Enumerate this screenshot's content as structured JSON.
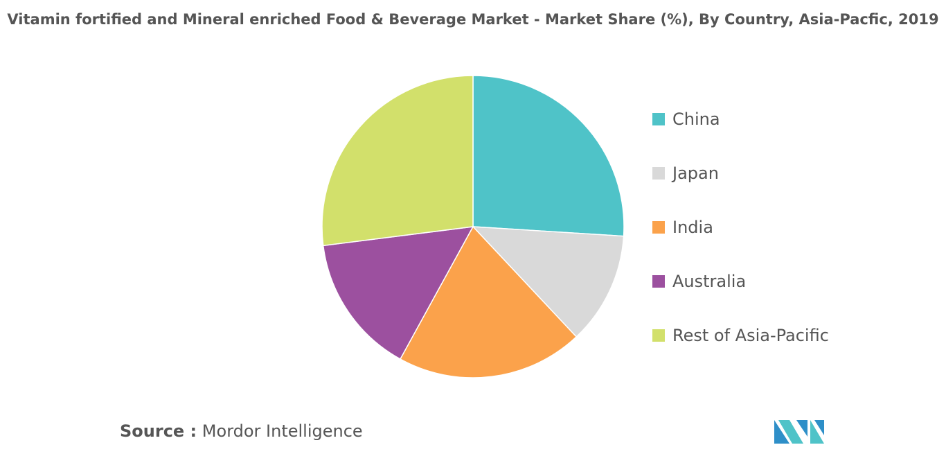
{
  "chart_data": {
    "type": "pie",
    "title": "Vitamin fortified and Mineral enriched Food & Beverage Market - Market Share (%), By Country, Asia-Pacfic, 2019",
    "categories": [
      "China",
      "Japan",
      "India",
      "Australia",
      "Rest of Asia-Pacific"
    ],
    "values": [
      26,
      12,
      20,
      15,
      27
    ],
    "colors": [
      "#4fc3c8",
      "#d9d9d9",
      "#fba24b",
      "#9c509f",
      "#d2e06b"
    ],
    "legend": "right"
  },
  "source": {
    "label": "Source :",
    "text": "Mordor Intelligence"
  }
}
